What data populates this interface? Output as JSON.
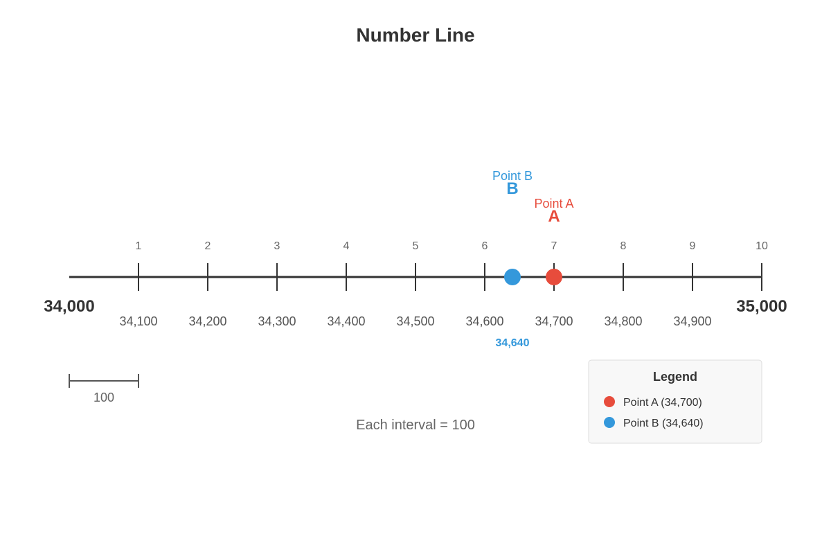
{
  "title": "Number Line",
  "number_line": {
    "start": 34000,
    "end": 35000,
    "interval": 100,
    "start_label": "34,000",
    "end_label": "35,000",
    "tick_numbers": [
      "1",
      "2",
      "3",
      "4",
      "5",
      "6",
      "7",
      "8",
      "9",
      "10"
    ],
    "tick_values": [
      "34,100",
      "34,200",
      "34,300",
      "34,400",
      "34,500",
      "34,600",
      "34,700",
      "34,800",
      "34,900"
    ]
  },
  "points": [
    {
      "letter": "A",
      "name": "Point A",
      "value": 34700,
      "value_label": "",
      "color": "#e74c3c",
      "legend": "Point A (34,700)"
    },
    {
      "letter": "B",
      "name": "Point B",
      "value": 34640,
      "value_label": "34,640",
      "color": "#3498db",
      "legend": "Point B (34,640)"
    }
  ],
  "scale_bar": {
    "label": "100"
  },
  "caption": "Each interval = 100",
  "legend": {
    "title": "Legend"
  }
}
